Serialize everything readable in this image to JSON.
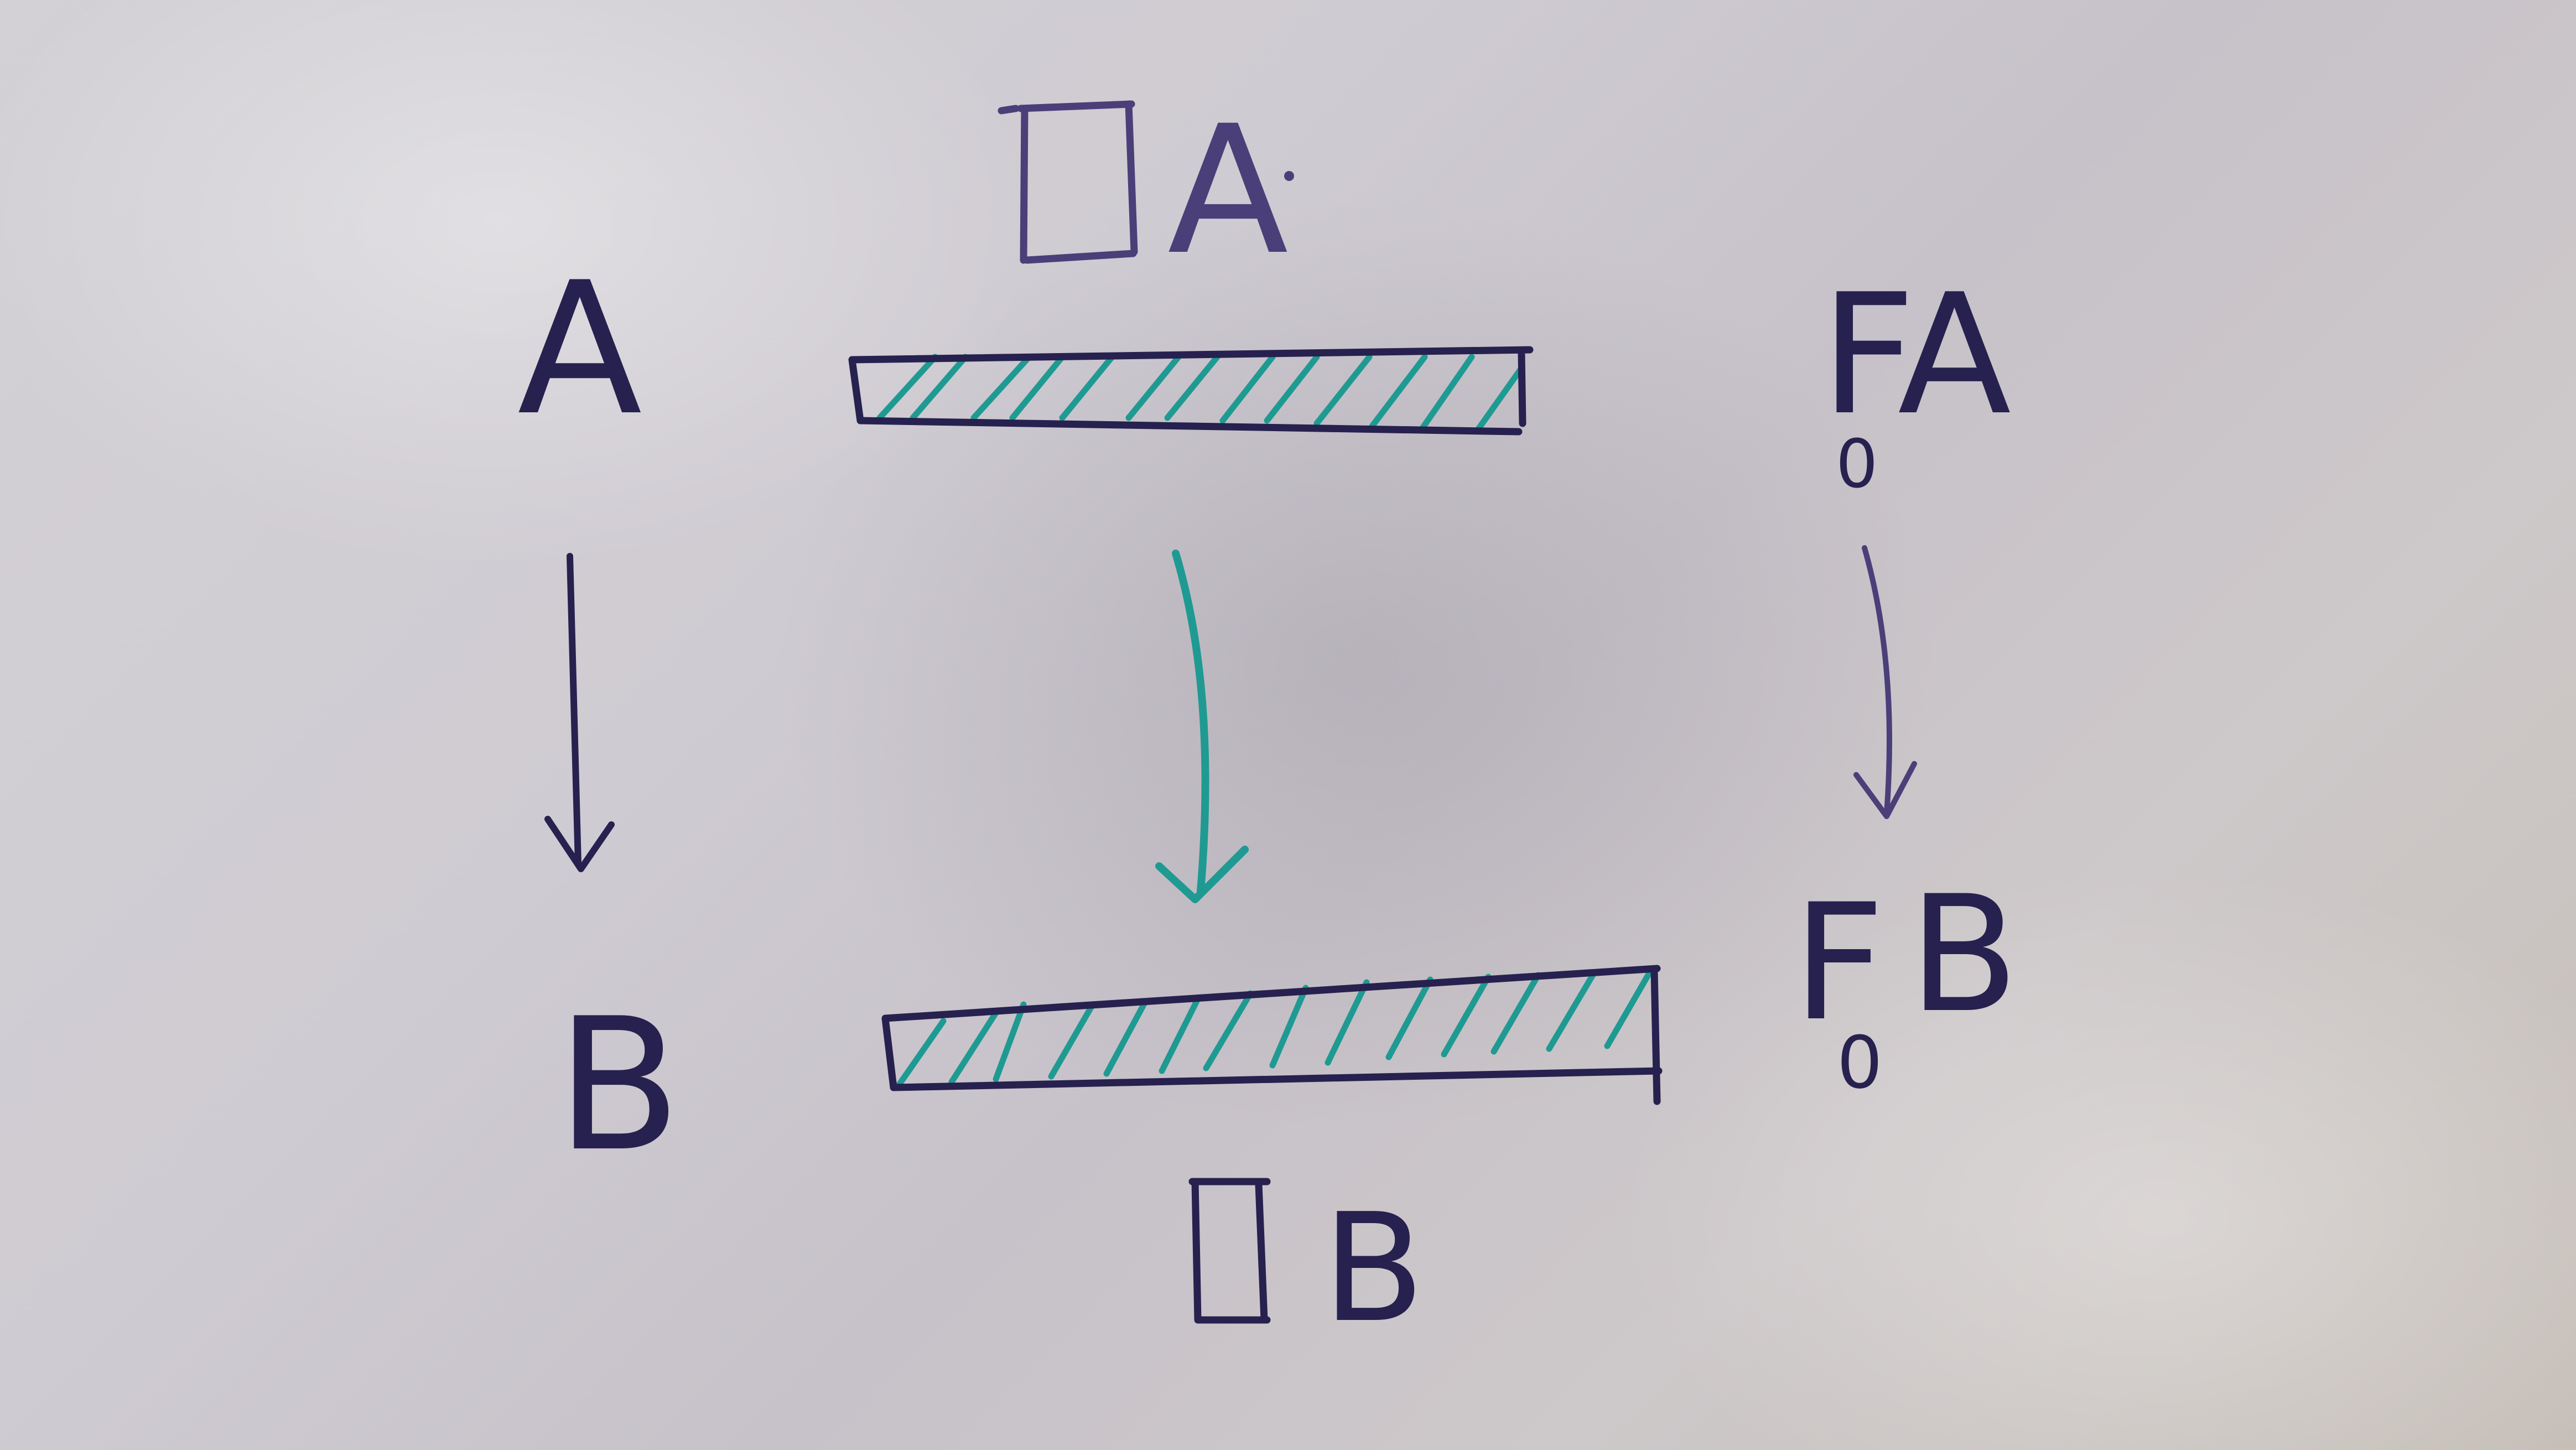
{
  "labels": {
    "box_a": "A",
    "box_b": "B",
    "left_top": "A",
    "left_bottom": "B",
    "right_top": "A",
    "right_bottom": "B",
    "functor_top": "F",
    "functor_bottom": "F",
    "sub_top": "0",
    "sub_bottom": "0"
  },
  "colors": {
    "ink_dark": "#27214f",
    "ink_light": "#4a3f78",
    "ink_teal": "#1f9a92",
    "board": "#cfcbd2"
  },
  "icons": {
    "box_symbol": "square-operator-icon"
  }
}
